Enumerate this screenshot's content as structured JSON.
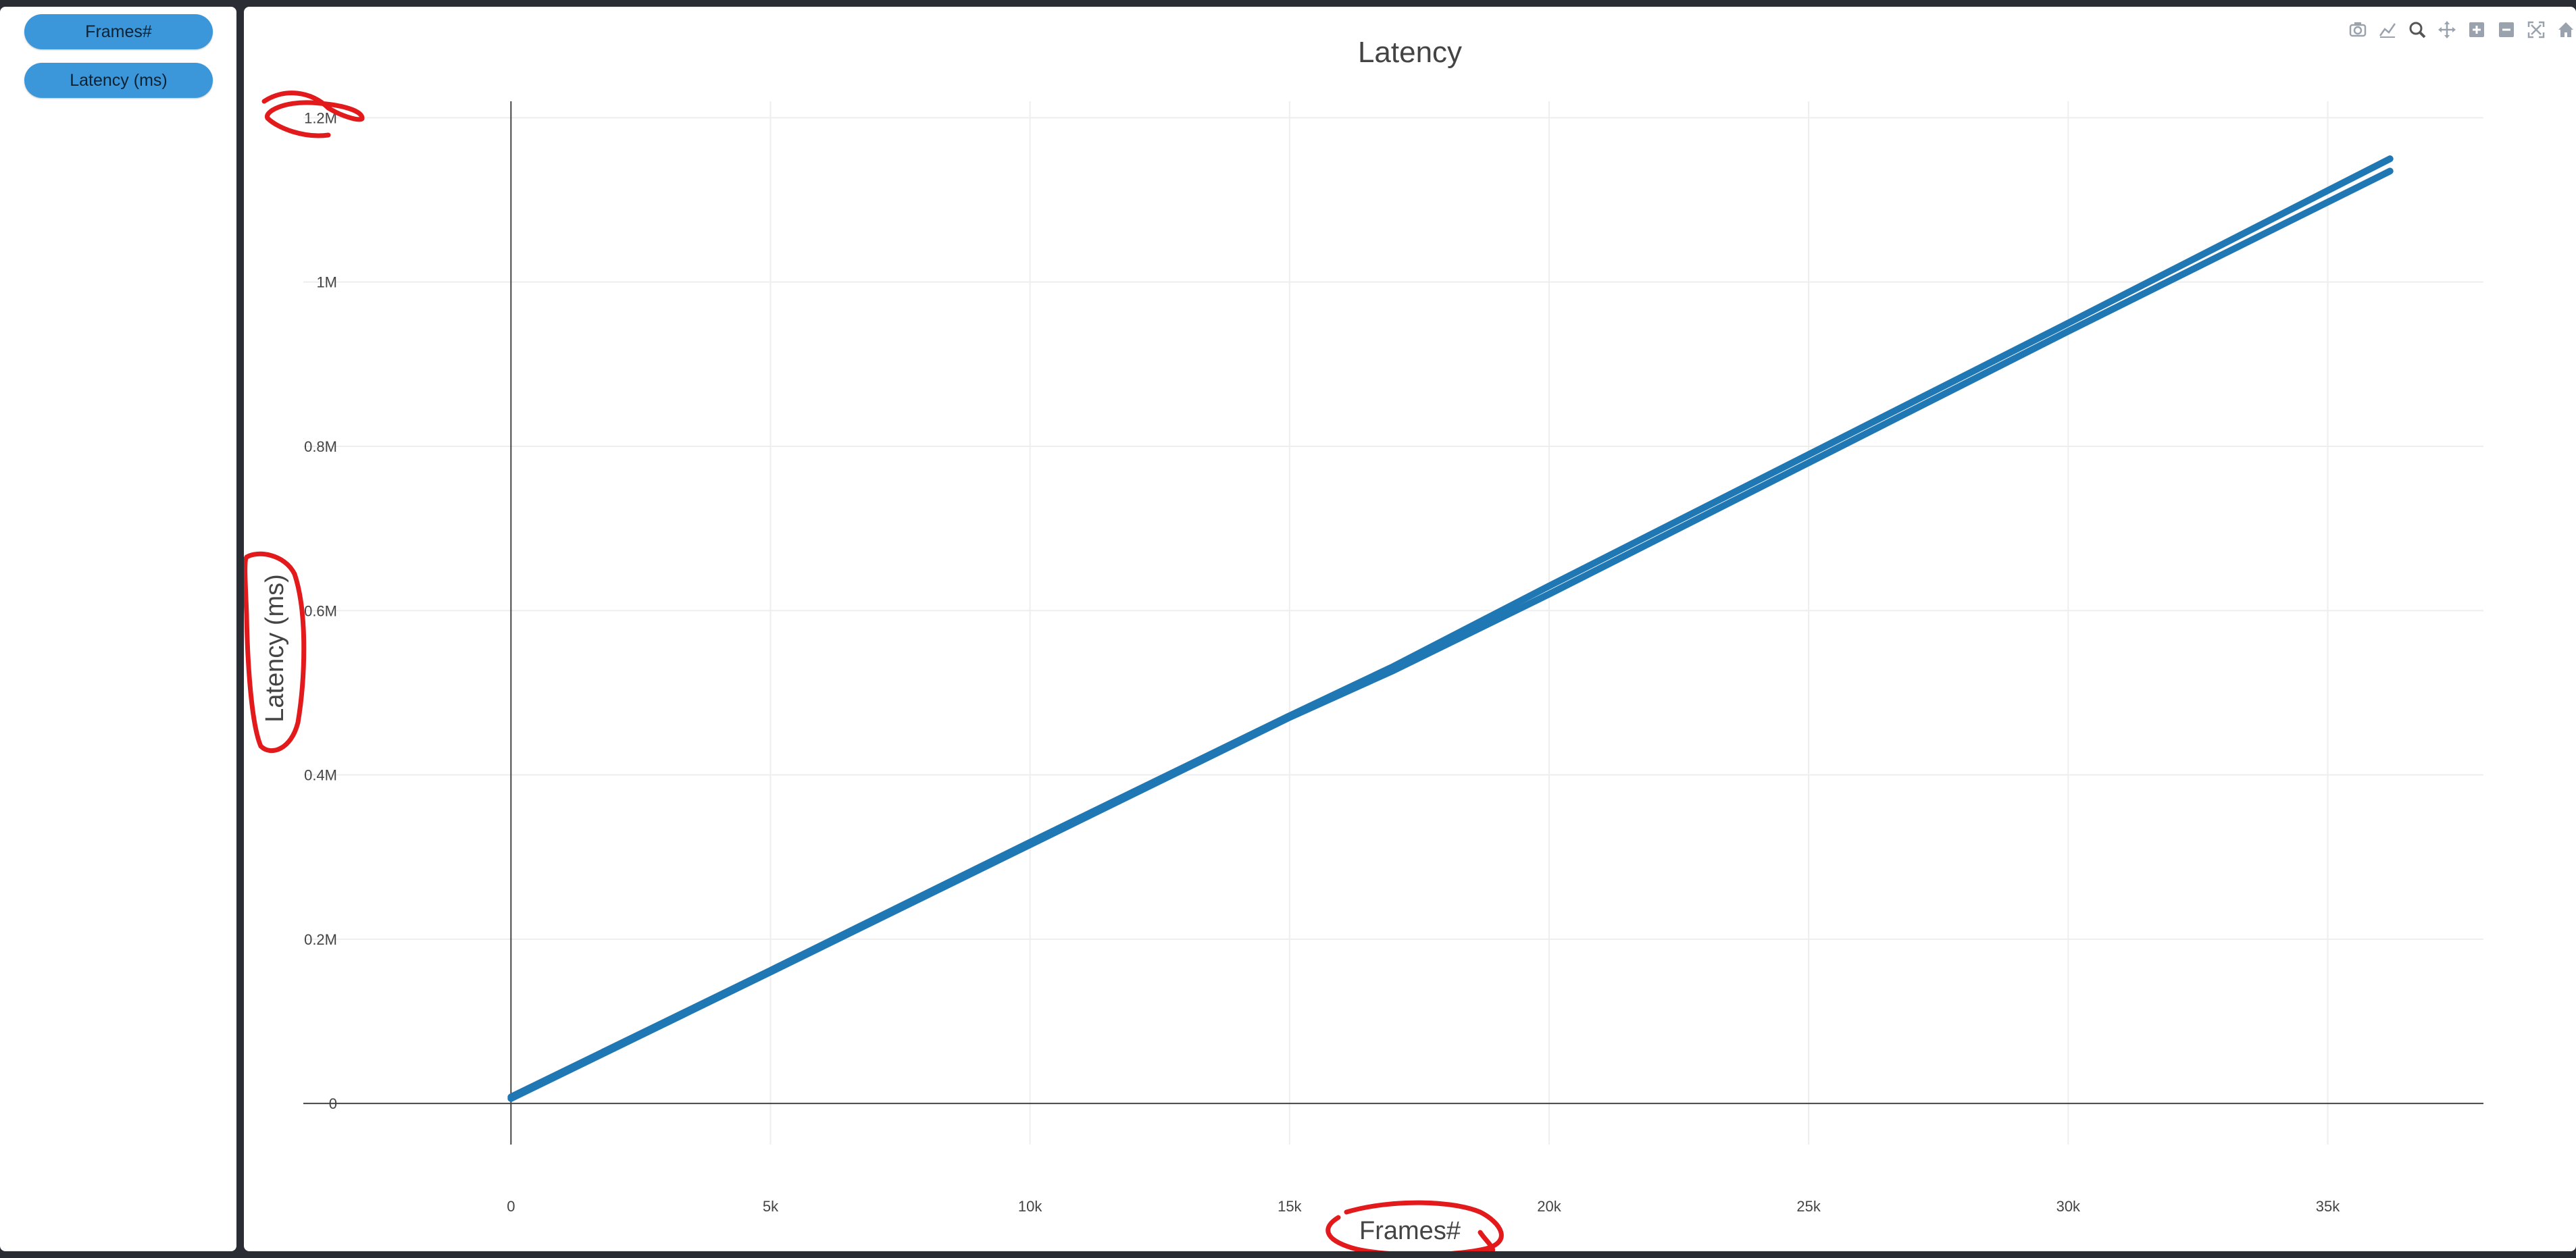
{
  "sidebar": {
    "buttons": [
      {
        "label": "Frames#"
      },
      {
        "label": "Latency (ms)"
      }
    ]
  },
  "modebar": {
    "icons": [
      "camera-icon",
      "line-icon",
      "zoom-icon",
      "pan-icon",
      "zoom-in-icon",
      "zoom-out-icon",
      "autoscale-icon",
      "home-icon"
    ]
  },
  "colors": {
    "line": "#1f77b4",
    "annotation": "#e31a1c",
    "button": "#3b97d9"
  },
  "chart_data": {
    "type": "line",
    "title": "Latency",
    "xlabel": "Frames#",
    "ylabel": "Latency (ms)",
    "xlim": [
      -4000,
      38000
    ],
    "ylim": [
      -50000,
      1220000
    ],
    "x_ticks": [
      {
        "value": 0,
        "label": "0"
      },
      {
        "value": 5000,
        "label": "5k"
      },
      {
        "value": 10000,
        "label": "10k"
      },
      {
        "value": 15000,
        "label": "15k"
      },
      {
        "value": 20000,
        "label": "20k"
      },
      {
        "value": 25000,
        "label": "25k"
      },
      {
        "value": 30000,
        "label": "30k"
      },
      {
        "value": 35000,
        "label": "35k"
      }
    ],
    "y_ticks": [
      {
        "value": 0,
        "label": "0"
      },
      {
        "value": 200000,
        "label": "0.2M"
      },
      {
        "value": 400000,
        "label": "0.4M"
      },
      {
        "value": 600000,
        "label": "0.6M"
      },
      {
        "value": 800000,
        "label": "0.8M"
      },
      {
        "value": 1000000,
        "label": "1M"
      },
      {
        "value": 1200000,
        "label": "1.2M"
      }
    ],
    "grid": true,
    "series": [
      {
        "x": [
          0,
          5000,
          10000,
          15000,
          17000,
          20000,
          25000,
          30000,
          36200
        ],
        "y": [
          8000,
          162000,
          318000,
          472000,
          532000,
          630000,
          790000,
          950000,
          1150000
        ]
      },
      {
        "x": [
          0,
          5000,
          10000,
          15000,
          17000,
          20000,
          25000,
          30000,
          36200
        ],
        "y": [
          6000,
          160000,
          315000,
          470000,
          527000,
          620000,
          780000,
          940000,
          1135000
        ]
      }
    ]
  }
}
